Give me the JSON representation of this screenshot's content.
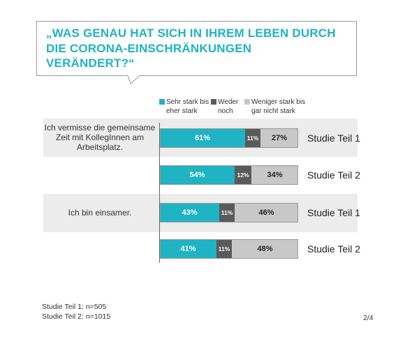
{
  "title": "„WAS GENAU HAT SICH IN IHREM LEBEN DURCH DIE CORONA-EINSCHRÄNKUNGEN VERÄNDERT?“",
  "colors": {
    "accent": "#1fb3c4",
    "mid": "#5a5a5a",
    "light": "#c8c8c8"
  },
  "legend": [
    {
      "label": "Sehr stark bis eher stark",
      "color": "#1fb3c4"
    },
    {
      "label": "Weder noch",
      "color": "#5a5a5a"
    },
    {
      "label": "Weniger stark bis gar nicht stark",
      "color": "#c8c8c8"
    }
  ],
  "chart_data": {
    "type": "bar",
    "orientation": "horizontal-stacked-100",
    "title": "„WAS GENAU HAT SICH IN IHREM LEBEN DURCH DIE CORONA-EINSCHRÄNKUNGEN VERÄNDERT?“",
    "groups": [
      {
        "question": "Ich vermisse die gemeinsame Zeit mit KollegInnen am Arbeitsplatz.",
        "rows": [
          {
            "study": "Studie Teil 1",
            "values": [
              61,
              11,
              27
            ],
            "labels": [
              "61%",
              "11%",
              "27%"
            ]
          },
          {
            "study": "Studie Teil 2",
            "values": [
              54,
              12,
              34
            ],
            "labels": [
              "54%",
              "12%",
              "34%"
            ]
          }
        ]
      },
      {
        "question": "Ich bin einsamer.",
        "rows": [
          {
            "study": "Studie Teil 1",
            "values": [
              43,
              11,
              46
            ],
            "labels": [
              "43%",
              "11%",
              "46%"
            ]
          },
          {
            "study": "Studie Teil 2",
            "values": [
              41,
              11,
              48
            ],
            "labels": [
              "41%",
              "11%",
              "48%"
            ]
          }
        ]
      }
    ],
    "series": [
      {
        "name": "Sehr stark bis eher stark"
      },
      {
        "name": "Weder noch"
      },
      {
        "name": "Weniger stark bis gar nicht stark"
      }
    ],
    "xlim": [
      0,
      100
    ]
  },
  "footnotes": [
    "Studie Teil 1: n=505",
    "Studie Teil 2: n=1015"
  ],
  "page": "2/4"
}
